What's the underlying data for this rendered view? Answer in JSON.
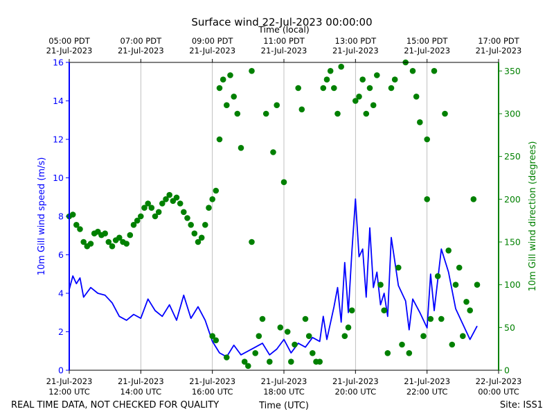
{
  "chart_data": {
    "type": "line",
    "title": "Surface wind 22-Jul-2023 00:00:00",
    "xlabel": "Time (UTC)",
    "x2label": "Time (local)",
    "ylabel": "10m Gill wind speed (m/s)",
    "y2label": "10m Gill wind direction (degrees)",
    "xlim_hours": [
      12,
      24
    ],
    "ylim": [
      0,
      16
    ],
    "y2lim": [
      0,
      360
    ],
    "yticks": [
      0,
      2,
      4,
      6,
      8,
      10,
      12,
      14,
      16
    ],
    "y2ticks": [
      0,
      50,
      100,
      150,
      200,
      250,
      300,
      350
    ],
    "grid": "vertical",
    "bottom_ticks": [
      {
        "h": 12,
        "date": "21-Jul-2023",
        "time": "12:00 UTC"
      },
      {
        "h": 14,
        "date": "21-Jul-2023",
        "time": "14:00 UTC"
      },
      {
        "h": 16,
        "date": "21-Jul-2023",
        "time": "16:00 UTC"
      },
      {
        "h": 18,
        "date": "21-Jul-2023",
        "time": "18:00 UTC"
      },
      {
        "h": 20,
        "date": "21-Jul-2023",
        "time": "20:00 UTC"
      },
      {
        "h": 22,
        "date": "21-Jul-2023",
        "time": "22:00 UTC"
      },
      {
        "h": 24,
        "date": "22-Jul-2023",
        "time": "00:00 UTC"
      }
    ],
    "top_ticks": [
      {
        "h": 12,
        "time": "05:00 PDT",
        "date": "21-Jul-2023"
      },
      {
        "h": 14,
        "time": "07:00 PDT",
        "date": "21-Jul-2023"
      },
      {
        "h": 16,
        "time": "09:00 PDT",
        "date": "21-Jul-2023"
      },
      {
        "h": 18,
        "time": "11:00 PDT",
        "date": "21-Jul-2023"
      },
      {
        "h": 20,
        "time": "13:00 PDT",
        "date": "21-Jul-2023"
      },
      {
        "h": 22,
        "time": "15:00 PDT",
        "date": "21-Jul-2023"
      },
      {
        "h": 24,
        "time": "17:00 PDT",
        "date": "21-Jul-2023"
      }
    ],
    "series": [
      {
        "name": "10m Gill wind speed",
        "kind": "line",
        "axis": "left",
        "color": "#0000ff",
        "x": [
          12.0,
          12.1,
          12.2,
          12.3,
          12.4,
          12.6,
          12.8,
          13.0,
          13.2,
          13.4,
          13.6,
          13.8,
          14.0,
          14.2,
          14.4,
          14.6,
          14.8,
          15.0,
          15.2,
          15.4,
          15.6,
          15.8,
          16.0,
          16.2,
          16.4,
          16.6,
          16.8,
          17.0,
          17.2,
          17.4,
          17.6,
          17.8,
          18.0,
          18.2,
          18.4,
          18.6,
          18.8,
          19.0,
          19.1,
          19.2,
          19.4,
          19.5,
          19.6,
          19.7,
          19.8,
          19.9,
          20.0,
          20.1,
          20.2,
          20.3,
          20.4,
          20.5,
          20.6,
          20.7,
          20.8,
          20.9,
          21.0,
          21.2,
          21.4,
          21.5,
          21.6,
          21.8,
          22.0,
          22.1,
          22.2,
          22.4,
          22.6,
          22.8,
          23.0,
          23.2,
          23.4
        ],
        "values": [
          4.2,
          4.9,
          4.5,
          4.8,
          3.8,
          4.3,
          4.0,
          3.9,
          3.5,
          2.8,
          2.6,
          2.9,
          2.7,
          3.7,
          3.1,
          2.8,
          3.4,
          2.6,
          3.9,
          2.7,
          3.3,
          2.6,
          1.5,
          0.9,
          0.7,
          1.3,
          0.8,
          1.0,
          1.2,
          1.4,
          0.8,
          1.1,
          1.6,
          0.9,
          1.4,
          1.2,
          1.7,
          1.5,
          2.8,
          1.6,
          3.3,
          4.3,
          2.5,
          5.6,
          3.0,
          6.2,
          8.9,
          5.9,
          6.3,
          3.8,
          7.4,
          4.3,
          5.1,
          3.4,
          4.0,
          2.8,
          6.9,
          4.4,
          3.6,
          2.1,
          3.7,
          3.0,
          2.2,
          5.0,
          3.1,
          6.3,
          5.1,
          3.2,
          2.4,
          1.6,
          2.3
        ]
      },
      {
        "name": "10m Gill wind direction",
        "kind": "scatter",
        "axis": "right",
        "color": "#008000",
        "x": [
          12.0,
          12.1,
          12.2,
          12.3,
          12.4,
          12.5,
          12.6,
          12.7,
          12.8,
          12.9,
          13.0,
          13.1,
          13.2,
          13.3,
          13.4,
          13.5,
          13.6,
          13.7,
          13.8,
          13.9,
          14.0,
          14.1,
          14.2,
          14.3,
          14.4,
          14.5,
          14.6,
          14.7,
          14.8,
          14.9,
          15.0,
          15.1,
          15.2,
          15.3,
          15.4,
          15.5,
          15.6,
          15.7,
          15.8,
          15.9,
          16.0,
          16.0,
          16.1,
          16.1,
          16.2,
          16.2,
          16.3,
          16.4,
          16.4,
          16.5,
          16.6,
          16.7,
          16.8,
          16.9,
          17.0,
          17.1,
          17.1,
          17.2,
          17.3,
          17.4,
          17.5,
          17.6,
          17.7,
          17.8,
          17.9,
          18.0,
          18.1,
          18.2,
          18.3,
          18.4,
          18.5,
          18.6,
          18.7,
          18.8,
          18.9,
          19.0,
          19.1,
          19.2,
          19.3,
          19.4,
          19.5,
          19.6,
          19.7,
          19.8,
          19.9,
          20.0,
          20.1,
          20.2,
          20.3,
          20.4,
          20.5,
          20.6,
          20.7,
          20.8,
          20.9,
          21.0,
          21.1,
          21.2,
          21.3,
          21.4,
          21.5,
          21.6,
          21.7,
          21.8,
          21.9,
          22.0,
          22.0,
          22.1,
          22.2,
          22.3,
          22.4,
          22.5,
          22.6,
          22.7,
          22.8,
          22.9,
          23.0,
          23.1,
          23.2,
          23.3,
          23.4
        ],
        "values": [
          180,
          182,
          170,
          165,
          150,
          145,
          148,
          160,
          162,
          158,
          160,
          150,
          145,
          152,
          155,
          150,
          148,
          158,
          170,
          175,
          180,
          190,
          195,
          190,
          180,
          185,
          195,
          200,
          205,
          198,
          202,
          195,
          185,
          178,
          170,
          160,
          150,
          155,
          170,
          190,
          200,
          40,
          210,
          35,
          270,
          330,
          340,
          310,
          15,
          345,
          320,
          300,
          260,
          10,
          5,
          350,
          150,
          20,
          40,
          60,
          300,
          10,
          255,
          310,
          50,
          220,
          45,
          10,
          30,
          330,
          305,
          60,
          40,
          20,
          10,
          10,
          330,
          340,
          350,
          330,
          300,
          355,
          40,
          50,
          70,
          315,
          320,
          340,
          300,
          330,
          310,
          345,
          100,
          70,
          20,
          330,
          340,
          120,
          30,
          360,
          20,
          350,
          320,
          290,
          40,
          200,
          270,
          60,
          350,
          110,
          60,
          300,
          140,
          30,
          100,
          120,
          40,
          80,
          70,
          200,
          100
        ]
      }
    ],
    "annotations": {
      "footer_left": "REAL TIME DATA, NOT CHECKED FOR QUALITY",
      "footer_right": "Site: ISS1"
    },
    "colors": {
      "speed": "#0000ff",
      "direction": "#008000",
      "axes": "#000000",
      "grid": "#b0b0b0"
    }
  }
}
